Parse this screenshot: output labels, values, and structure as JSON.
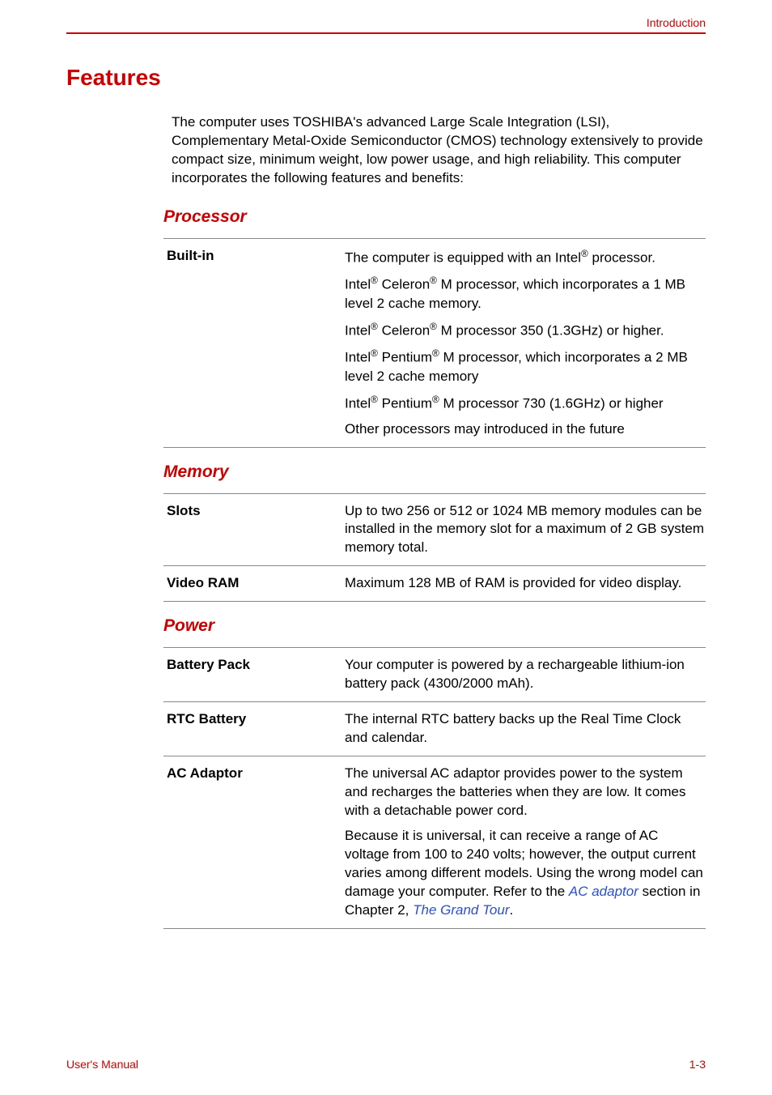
{
  "colors": {
    "accent": "#cc0000",
    "text": "#000000",
    "rule": "#888888",
    "link": "#2a4fd0"
  },
  "header": {
    "section_label": "Introduction"
  },
  "headings": {
    "main": "Features",
    "processor": "Processor",
    "memory": "Memory",
    "power": "Power"
  },
  "intro": "The computer uses TOSHIBA's advanced Large Scale Integration (LSI), Complementary Metal-Oxide Semiconductor (CMOS) technology extensively to provide compact size, minimum weight, low power usage, and high reliability. This computer incorporates the following features and benefits:",
  "processor": {
    "rows": [
      {
        "label": "Built-in",
        "paras": [
          "The computer is equipped with an Intel® processor.",
          "Intel® Celeron® M processor, which incorporates a 1 MB level 2 cache memory.",
          "Intel® Celeron® M processor 350 (1.3GHz) or higher.",
          "Intel® Pentium® M processor, which incorporates a 2 MB level 2 cache memory",
          "Intel® Pentium® M processor 730 (1.6GHz) or higher",
          "Other processors may introduced in the future"
        ]
      }
    ]
  },
  "memory": {
    "rows": [
      {
        "label": "Slots",
        "paras": [
          "Up to two 256 or 512 or 1024 MB memory modules can be installed in the memory slot for a maximum of 2 GB system memory total."
        ]
      },
      {
        "label": "Video RAM",
        "paras": [
          "Maximum 128 MB of RAM is provided for video display."
        ]
      }
    ]
  },
  "power": {
    "rows": [
      {
        "label": "Battery Pack",
        "paras": [
          "Your computer is powered by a rechargeable lithium-ion battery pack (4300/2000 mAh)."
        ]
      },
      {
        "label": "RTC Battery",
        "paras": [
          "The internal RTC battery backs up the Real Time Clock and calendar."
        ]
      },
      {
        "label": "AC Adaptor",
        "paras": [
          "The universal AC adaptor provides power to the system and recharges the batteries when they are low. It comes with a detachable power cord.",
          "Because it is universal, it can receive a range of AC voltage from 100 to 240 volts; however, the output current varies among different models. Using the wrong model can damage your computer. Refer to the "
        ],
        "link1": "AC adaptor",
        "after_link1": " section in Chapter 2, ",
        "link2": "The Grand Tour",
        "after_link2": "."
      }
    ]
  },
  "footer": {
    "left": "User's Manual",
    "right": "1-3"
  }
}
